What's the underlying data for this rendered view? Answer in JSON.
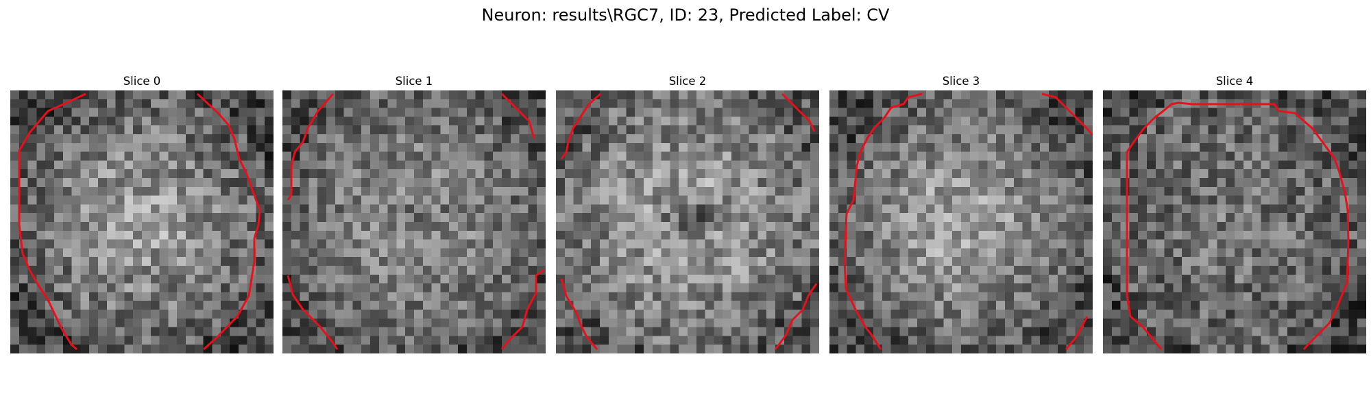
{
  "figure": {
    "title": "Neuron: results\\RGC7, ID: 23, Predicted Label: CV"
  },
  "panels": [
    {
      "title": "Slice 0"
    },
    {
      "title": "Slice 1"
    },
    {
      "title": "Slice 2"
    },
    {
      "title": "Slice 3"
    },
    {
      "title": "Slice 4"
    }
  ],
  "colors": {
    "contour": "#e8101a",
    "background": "#ffffff"
  }
}
